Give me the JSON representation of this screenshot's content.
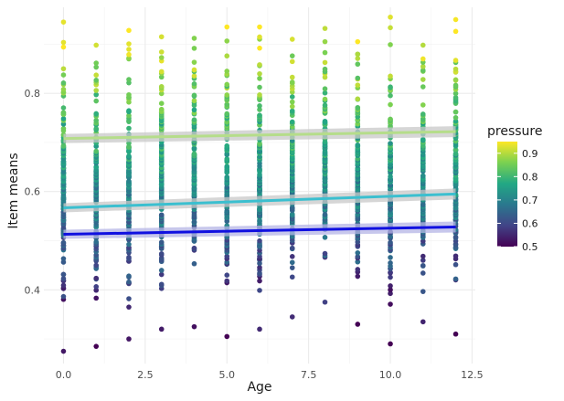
{
  "chart_data": {
    "type": "scatter",
    "title": "",
    "xlabel": "Age",
    "ylabel": "Item means",
    "xlim": [
      -0.6,
      12.6
    ],
    "ylim": [
      0.25,
      0.975
    ],
    "x_ticks": [
      0,
      2.5,
      5,
      7.5,
      10,
      12.5
    ],
    "x_tick_labels": [
      "0.0",
      "2.5",
      "5.0",
      "7.5",
      "10.0",
      "12.5"
    ],
    "y_ticks": [
      0.4,
      0.6,
      0.8
    ],
    "y_tick_labels": [
      "0.4",
      "0.6",
      "0.8"
    ],
    "grid": true,
    "legend": {
      "title": "pressure",
      "placement": "right",
      "range": [
        0.5,
        0.95
      ],
      "ticks": [
        0.5,
        0.6,
        0.7,
        0.8,
        0.9
      ],
      "tick_labels": [
        "0.5",
        "0.6",
        "0.7",
        "0.8",
        "0.9"
      ],
      "colormap": [
        "#440154",
        "#414487",
        "#2a788e",
        "#22a884",
        "#7ad151",
        "#fde725"
      ]
    },
    "ages": [
      0,
      1,
      2,
      3,
      4,
      5,
      6,
      7,
      8,
      9,
      10,
      11,
      12
    ],
    "column_extremes": [
      {
        "age": 0,
        "min": 0.275,
        "max": 0.945
      },
      {
        "age": 1,
        "min": 0.285,
        "max": 0.898
      },
      {
        "age": 2,
        "min": 0.3,
        "max": 0.928
      },
      {
        "age": 3,
        "min": 0.32,
        "max": 0.915
      },
      {
        "age": 4,
        "min": 0.325,
        "max": 0.912
      },
      {
        "age": 5,
        "min": 0.305,
        "max": 0.935
      },
      {
        "age": 6,
        "min": 0.32,
        "max": 0.935
      },
      {
        "age": 7,
        "min": 0.345,
        "max": 0.91
      },
      {
        "age": 8,
        "min": 0.375,
        "max": 0.932
      },
      {
        "age": 9,
        "min": 0.33,
        "max": 0.905
      },
      {
        "age": 10,
        "min": 0.29,
        "max": 0.955
      },
      {
        "age": 11,
        "min": 0.335,
        "max": 0.898
      },
      {
        "age": 12,
        "min": 0.31,
        "max": 0.95
      }
    ],
    "trend_lines": [
      {
        "color": "#b5dd8a",
        "band_color": "#c8c8c8",
        "x": [
          0,
          12
        ],
        "y": [
          0.708,
          0.722
        ]
      },
      {
        "color": "#3bbfcf",
        "band_color": "#c8c8c8",
        "x": [
          0,
          12
        ],
        "y": [
          0.567,
          0.595
        ]
      },
      {
        "color": "#1010e0",
        "band_color": "#b4b4e6",
        "x": [
          0,
          12
        ],
        "y": [
          0.513,
          0.528
        ]
      }
    ]
  }
}
